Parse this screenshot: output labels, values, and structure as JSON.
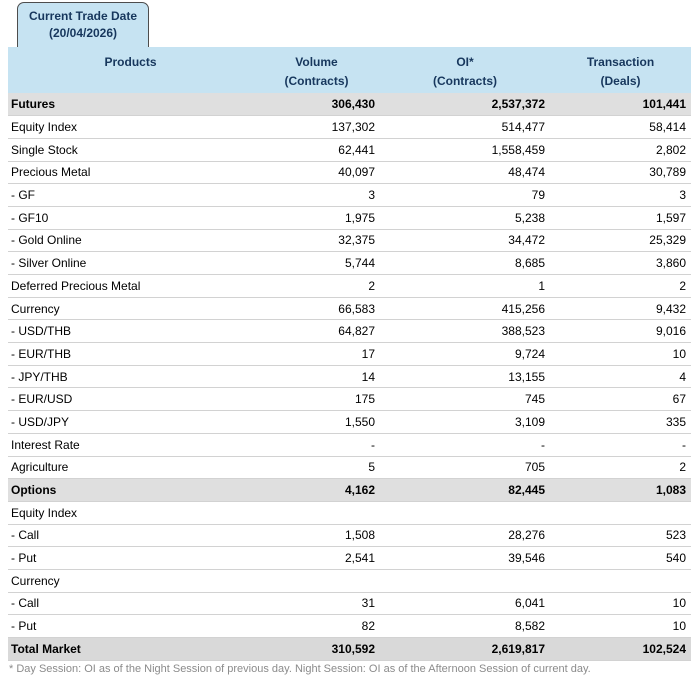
{
  "tab": {
    "line1": "Current Trade Date",
    "line2": "(20/04/2026)"
  },
  "table": {
    "columns": [
      {
        "label1": "Products",
        "label2": ""
      },
      {
        "label1": "Volume",
        "label2": "(Contracts)"
      },
      {
        "label1": "OI*",
        "label2": "(Contracts)"
      },
      {
        "label1": "Transaction",
        "label2": "(Deals)"
      }
    ],
    "rows": [
      {
        "product": "Futures",
        "volume": "306,430",
        "oi": "2,537,372",
        "transaction": "101,441",
        "style": "section"
      },
      {
        "product": "Equity Index",
        "volume": "137,302",
        "oi": "514,477",
        "transaction": "58,414",
        "style": "normal"
      },
      {
        "product": "Single Stock",
        "volume": "62,441",
        "oi": "1,558,459",
        "transaction": "2,802",
        "style": "normal"
      },
      {
        "product": "Precious Metal",
        "volume": "40,097",
        "oi": "48,474",
        "transaction": "30,789",
        "style": "normal"
      },
      {
        "product": "- GF",
        "volume": "3",
        "oi": "79",
        "transaction": "3",
        "style": "normal"
      },
      {
        "product": "- GF10",
        "volume": "1,975",
        "oi": "5,238",
        "transaction": "1,597",
        "style": "normal"
      },
      {
        "product": "- Gold Online",
        "volume": "32,375",
        "oi": "34,472",
        "transaction": "25,329",
        "style": "normal"
      },
      {
        "product": "- Silver Online",
        "volume": "5,744",
        "oi": "8,685",
        "transaction": "3,860",
        "style": "normal"
      },
      {
        "product": "Deferred Precious Metal",
        "volume": "2",
        "oi": "1",
        "transaction": "2",
        "style": "normal"
      },
      {
        "product": "Currency",
        "volume": "66,583",
        "oi": "415,256",
        "transaction": "9,432",
        "style": "normal"
      },
      {
        "product": "- USD/THB",
        "volume": "64,827",
        "oi": "388,523",
        "transaction": "9,016",
        "style": "normal"
      },
      {
        "product": "- EUR/THB",
        "volume": "17",
        "oi": "9,724",
        "transaction": "10",
        "style": "normal"
      },
      {
        "product": "- JPY/THB",
        "volume": "14",
        "oi": "13,155",
        "transaction": "4",
        "style": "normal"
      },
      {
        "product": "- EUR/USD",
        "volume": "175",
        "oi": "745",
        "transaction": "67",
        "style": "normal"
      },
      {
        "product": "- USD/JPY",
        "volume": "1,550",
        "oi": "3,109",
        "transaction": "335",
        "style": "normal"
      },
      {
        "product": "Interest Rate",
        "volume": "-",
        "oi": "-",
        "transaction": "-",
        "style": "normal"
      },
      {
        "product": "Agriculture",
        "volume": "5",
        "oi": "705",
        "transaction": "2",
        "style": "normal"
      },
      {
        "product": "Options",
        "volume": "4,162",
        "oi": "82,445",
        "transaction": "1,083",
        "style": "section"
      },
      {
        "product": "Equity Index",
        "volume": "",
        "oi": "",
        "transaction": "",
        "style": "subheader"
      },
      {
        "product": "- Call",
        "volume": "1,508",
        "oi": "28,276",
        "transaction": "523",
        "style": "normal"
      },
      {
        "product": "- Put",
        "volume": "2,541",
        "oi": "39,546",
        "transaction": "540",
        "style": "normal"
      },
      {
        "product": "Currency",
        "volume": "",
        "oi": "",
        "transaction": "",
        "style": "subheader"
      },
      {
        "product": "- Call",
        "volume": "31",
        "oi": "6,041",
        "transaction": "10",
        "style": "normal"
      },
      {
        "product": "- Put",
        "volume": "82",
        "oi": "8,582",
        "transaction": "10",
        "style": "normal"
      },
      {
        "product": "Total Market",
        "volume": "310,592",
        "oi": "2,619,817",
        "transaction": "102,524",
        "style": "total"
      }
    ]
  },
  "footnote": "* Day Session: OI as of the Night Session of previous day. Night Session: OI as of the Afternoon Session of current day.",
  "colors": {
    "header_bg": "#c6e3f2",
    "header_text": "#17375d",
    "section_row_bg": "#dfdfdf",
    "total_row_bg": "#d9d9d9",
    "row_border": "#d2d2d2",
    "footnote_text": "#8b8b8b"
  }
}
